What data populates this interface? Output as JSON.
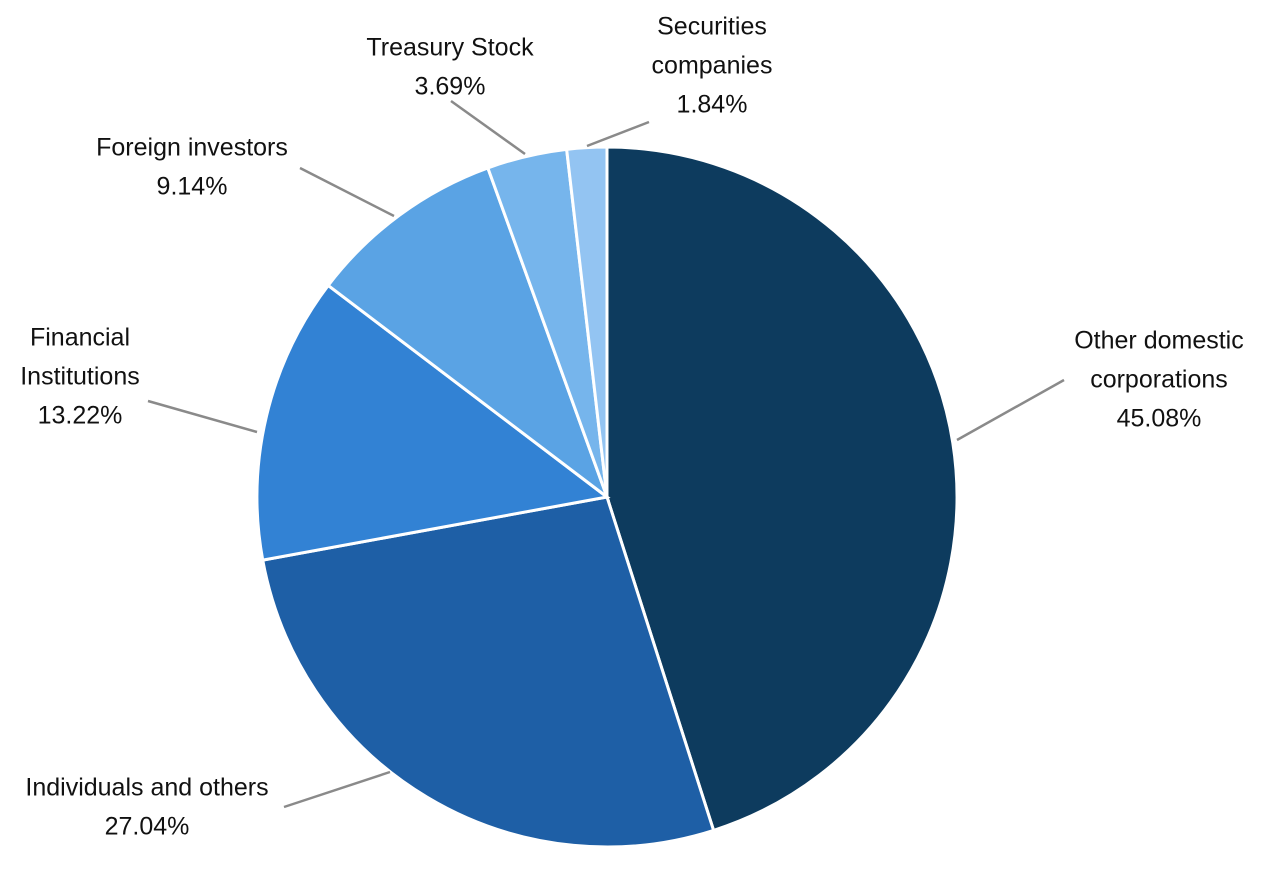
{
  "chart_data": {
    "type": "pie",
    "slices": [
      {
        "label_lines": [
          "Other domestic",
          "corporations"
        ],
        "pct_text": "45.08%",
        "value": 45.08,
        "color": "#0d3b5e"
      },
      {
        "label_lines": [
          "Individuals and others"
        ],
        "pct_text": "27.04%",
        "value": 27.04,
        "color": "#1e5fa6"
      },
      {
        "label_lines": [
          "Financial",
          "Institutions"
        ],
        "pct_text": "13.22%",
        "value": 13.22,
        "color": "#3282d4"
      },
      {
        "label_lines": [
          "Foreign investors"
        ],
        "pct_text": "9.14%",
        "value": 9.14,
        "color": "#5aa3e4"
      },
      {
        "label_lines": [
          "Treasury Stock"
        ],
        "pct_text": "3.69%",
        "value": 3.69,
        "color": "#76b5ec"
      },
      {
        "label_lines": [
          "Securities",
          "companies"
        ],
        "pct_text": "1.84%",
        "value": 1.84,
        "color": "#93c4f2"
      }
    ],
    "start_angle_deg": 0,
    "direction": "clockwise",
    "leader_line_color": "#8a8a8a"
  }
}
